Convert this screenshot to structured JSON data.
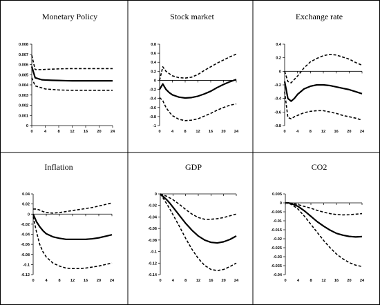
{
  "chart_data": [
    {
      "type": "line",
      "title": "Monetary Policy",
      "x_ticks": [
        0,
        4,
        8,
        12,
        16,
        20,
        24
      ],
      "y_ticks": [
        0,
        0.001,
        0.002,
        0.003,
        0.004,
        0.005,
        0.006,
        0.007,
        0.008
      ],
      "y_tick_labels": [
        "0",
        "0.001",
        "0.002",
        "0.003",
        "0.004",
        "0.005",
        "0.006",
        "0.007",
        "0.008"
      ],
      "ylim": [
        0,
        0.008
      ],
      "xlim": [
        0,
        24
      ],
      "series": [
        {
          "role": "estimate",
          "x": [
            0,
            1,
            2,
            3,
            4,
            6,
            8,
            10,
            12,
            14,
            16,
            18,
            20,
            22,
            24
          ],
          "y": [
            0.0058,
            0.0047,
            0.0046,
            0.0045,
            0.00448,
            0.00445,
            0.00443,
            0.00441,
            0.0044,
            0.0044,
            0.0044,
            0.0044,
            0.0044,
            0.0044,
            0.0044
          ]
        },
        {
          "role": "upper",
          "x": [
            0,
            1,
            2,
            3,
            4,
            6,
            8,
            10,
            12,
            14,
            16,
            18,
            20,
            22,
            24
          ],
          "y": [
            0.0069,
            0.0055,
            0.0055,
            0.0055,
            0.00552,
            0.00555,
            0.00557,
            0.00559,
            0.0056,
            0.0056,
            0.0056,
            0.0056,
            0.0056,
            0.0056,
            0.0056
          ]
        },
        {
          "role": "lower",
          "x": [
            0,
            1,
            2,
            3,
            4,
            6,
            8,
            10,
            12,
            14,
            16,
            18,
            20,
            22,
            24
          ],
          "y": [
            0.0047,
            0.0039,
            0.0038,
            0.0037,
            0.0036,
            0.00355,
            0.0035,
            0.00348,
            0.00347,
            0.00347,
            0.00347,
            0.00347,
            0.00347,
            0.00347,
            0.00347
          ]
        }
      ]
    },
    {
      "type": "line",
      "title": "Stock market",
      "x_ticks": [
        0,
        4,
        8,
        12,
        16,
        20,
        24
      ],
      "y_ticks": [
        -1,
        -0.8,
        -0.6,
        -0.4,
        -0.2,
        0,
        0.2,
        0.4,
        0.6,
        0.8
      ],
      "y_tick_labels": [
        "-1",
        "-0.8",
        "-0.6",
        "-0.4",
        "-0.2",
        "0",
        "0.2",
        "0.4",
        "0.6",
        "0.8"
      ],
      "ylim": [
        -1,
        0.8
      ],
      "xlim": [
        0,
        24
      ],
      "series": [
        {
          "role": "estimate",
          "x": [
            0,
            1,
            2,
            3,
            4,
            6,
            8,
            10,
            12,
            14,
            16,
            18,
            20,
            22,
            24
          ],
          "y": [
            -0.2,
            -0.08,
            -0.2,
            -0.27,
            -0.32,
            -0.37,
            -0.39,
            -0.38,
            -0.35,
            -0.3,
            -0.24,
            -0.16,
            -0.09,
            -0.03,
            0.02
          ]
        },
        {
          "role": "upper",
          "x": [
            0,
            1,
            2,
            3,
            4,
            6,
            8,
            10,
            12,
            14,
            16,
            18,
            20,
            22,
            24
          ],
          "y": [
            0.0,
            0.3,
            0.2,
            0.15,
            0.1,
            0.06,
            0.05,
            0.07,
            0.13,
            0.22,
            0.3,
            0.38,
            0.45,
            0.52,
            0.58
          ]
        },
        {
          "role": "lower",
          "x": [
            0,
            1,
            2,
            3,
            4,
            6,
            8,
            10,
            12,
            14,
            16,
            18,
            20,
            22,
            24
          ],
          "y": [
            -0.38,
            -0.45,
            -0.6,
            -0.7,
            -0.78,
            -0.86,
            -0.89,
            -0.88,
            -0.85,
            -0.79,
            -0.73,
            -0.66,
            -0.6,
            -0.55,
            -0.52
          ]
        }
      ]
    },
    {
      "type": "line",
      "title": "Exchange rate",
      "x_ticks": [
        0,
        4,
        8,
        12,
        16,
        20,
        24
      ],
      "y_ticks": [
        -0.8,
        -0.6,
        -0.4,
        -0.2,
        0,
        0.2,
        0.4
      ],
      "y_tick_labels": [
        "-0.8",
        "-0.6",
        "-0.4",
        "-0.2",
        "0",
        "0.2",
        "0.4"
      ],
      "ylim": [
        -0.8,
        0.4
      ],
      "xlim": [
        0,
        24
      ],
      "series": [
        {
          "role": "estimate",
          "x": [
            0,
            1,
            2,
            3,
            4,
            6,
            8,
            10,
            12,
            14,
            16,
            18,
            20,
            22,
            24
          ],
          "y": [
            -0.15,
            -0.4,
            -0.44,
            -0.4,
            -0.34,
            -0.26,
            -0.22,
            -0.2,
            -0.2,
            -0.21,
            -0.23,
            -0.25,
            -0.27,
            -0.3,
            -0.33
          ]
        },
        {
          "role": "upper",
          "x": [
            0,
            1,
            2,
            3,
            4,
            6,
            8,
            10,
            12,
            14,
            16,
            18,
            20,
            22,
            24
          ],
          "y": [
            0.0,
            -0.15,
            -0.17,
            -0.12,
            -0.07,
            0.05,
            0.14,
            0.19,
            0.23,
            0.25,
            0.24,
            0.21,
            0.18,
            0.13,
            0.09
          ]
        },
        {
          "role": "lower",
          "x": [
            0,
            1,
            2,
            3,
            4,
            6,
            8,
            10,
            12,
            14,
            16,
            18,
            20,
            22,
            24
          ],
          "y": [
            -0.3,
            -0.68,
            -0.7,
            -0.67,
            -0.65,
            -0.61,
            -0.59,
            -0.58,
            -0.58,
            -0.6,
            -0.62,
            -0.65,
            -0.67,
            -0.69,
            -0.72
          ]
        }
      ]
    },
    {
      "type": "line",
      "title": "Inflation",
      "x_ticks": [
        0,
        4,
        8,
        12,
        16,
        20,
        24
      ],
      "y_ticks": [
        -0.12,
        -0.1,
        -0.08,
        -0.06,
        -0.04,
        -0.02,
        0,
        0.02,
        0.04
      ],
      "y_tick_labels": [
        "-0.12",
        "-0.1",
        "-0.08",
        "-0.06",
        "-0.04",
        "-0.02",
        "0",
        "0.02",
        "0.04"
      ],
      "ylim": [
        -0.12,
        0.04
      ],
      "xlim": [
        0,
        24
      ],
      "series": [
        {
          "role": "estimate",
          "x": [
            0,
            1,
            2,
            3,
            4,
            6,
            8,
            10,
            12,
            14,
            16,
            18,
            20,
            22,
            24
          ],
          "y": [
            0.0,
            -0.015,
            -0.025,
            -0.033,
            -0.039,
            -0.045,
            -0.048,
            -0.05,
            -0.05,
            -0.05,
            -0.05,
            -0.049,
            -0.047,
            -0.044,
            -0.041
          ]
        },
        {
          "role": "upper",
          "x": [
            0,
            1,
            2,
            3,
            4,
            6,
            8,
            10,
            12,
            14,
            16,
            18,
            20,
            22,
            24
          ],
          "y": [
            0.01,
            0.01,
            0.008,
            0.005,
            0.003,
            0.002,
            0.003,
            0.005,
            0.007,
            0.009,
            0.011,
            0.013,
            0.016,
            0.019,
            0.022
          ]
        },
        {
          "role": "lower",
          "x": [
            0,
            1,
            2,
            3,
            4,
            6,
            8,
            10,
            12,
            14,
            16,
            18,
            20,
            22,
            24
          ],
          "y": [
            -0.005,
            -0.035,
            -0.06,
            -0.075,
            -0.085,
            -0.097,
            -0.103,
            -0.107,
            -0.108,
            -0.108,
            -0.107,
            -0.105,
            -0.103,
            -0.1,
            -0.097
          ]
        }
      ]
    },
    {
      "type": "line",
      "title": "GDP",
      "x_ticks": [
        0,
        4,
        8,
        12,
        16,
        20,
        24
      ],
      "y_ticks": [
        -0.14,
        -0.12,
        -0.1,
        -0.08,
        -0.06,
        -0.04,
        -0.02,
        0
      ],
      "y_tick_labels": [
        "-0.14",
        "-0.12",
        "-0.1",
        "-0.08",
        "-0.06",
        "-0.04",
        "-0.02",
        "0"
      ],
      "ylim": [
        -0.14,
        0
      ],
      "xlim": [
        0,
        24
      ],
      "series": [
        {
          "role": "estimate",
          "x": [
            0,
            1,
            2,
            3,
            4,
            6,
            8,
            10,
            12,
            14,
            16,
            18,
            20,
            22,
            24
          ],
          "y": [
            0.0,
            -0.005,
            -0.01,
            -0.016,
            -0.023,
            -0.037,
            -0.051,
            -0.063,
            -0.073,
            -0.08,
            -0.084,
            -0.085,
            -0.083,
            -0.079,
            -0.073
          ]
        },
        {
          "role": "upper",
          "x": [
            0,
            1,
            2,
            3,
            4,
            6,
            8,
            10,
            12,
            14,
            16,
            18,
            20,
            22,
            24
          ],
          "y": [
            0.0,
            -0.002,
            -0.004,
            -0.007,
            -0.01,
            -0.018,
            -0.027,
            -0.035,
            -0.041,
            -0.044,
            -0.044,
            -0.043,
            -0.041,
            -0.038,
            -0.035
          ]
        },
        {
          "role": "lower",
          "x": [
            0,
            1,
            2,
            3,
            4,
            6,
            8,
            10,
            12,
            14,
            16,
            18,
            20,
            22,
            24
          ],
          "y": [
            0.0,
            -0.008,
            -0.017,
            -0.026,
            -0.036,
            -0.056,
            -0.077,
            -0.096,
            -0.112,
            -0.124,
            -0.131,
            -0.133,
            -0.131,
            -0.126,
            -0.12
          ]
        }
      ]
    },
    {
      "type": "line",
      "title": "CO2",
      "x_ticks": [
        0,
        4,
        8,
        12,
        16,
        20,
        24
      ],
      "y_ticks": [
        -0.04,
        -0.035,
        -0.03,
        -0.025,
        -0.02,
        -0.015,
        -0.01,
        -0.005,
        0,
        0.005
      ],
      "y_tick_labels": [
        "-0.04",
        "-0.035",
        "-0.03",
        "-0.025",
        "-0.02",
        "-0.015",
        "-0.01",
        "-0.005",
        "0",
        "0.005"
      ],
      "ylim": [
        -0.04,
        0.005
      ],
      "xlim": [
        0,
        24
      ],
      "series": [
        {
          "role": "estimate",
          "x": [
            0,
            1,
            2,
            3,
            4,
            6,
            8,
            10,
            12,
            14,
            16,
            18,
            20,
            22,
            24
          ],
          "y": [
            0.0,
            0.0,
            -0.0005,
            -0.0012,
            -0.002,
            -0.0045,
            -0.0075,
            -0.0105,
            -0.013,
            -0.0152,
            -0.017,
            -0.018,
            -0.0187,
            -0.019,
            -0.0188
          ]
        },
        {
          "role": "upper",
          "x": [
            0,
            1,
            2,
            3,
            4,
            6,
            8,
            10,
            12,
            14,
            16,
            18,
            20,
            22,
            24
          ],
          "y": [
            0.0,
            0.0,
            -0.0002,
            -0.0005,
            -0.001,
            -0.002,
            -0.003,
            -0.0042,
            -0.0052,
            -0.006,
            -0.0065,
            -0.0067,
            -0.0066,
            -0.0063,
            -0.006
          ]
        },
        {
          "role": "lower",
          "x": [
            0,
            1,
            2,
            3,
            4,
            6,
            8,
            10,
            12,
            14,
            16,
            18,
            20,
            22,
            24
          ],
          "y": [
            0.0,
            -0.0002,
            -0.001,
            -0.0022,
            -0.0035,
            -0.0075,
            -0.012,
            -0.0165,
            -0.021,
            -0.025,
            -0.0285,
            -0.0312,
            -0.0333,
            -0.0347,
            -0.0355
          ]
        }
      ]
    }
  ]
}
